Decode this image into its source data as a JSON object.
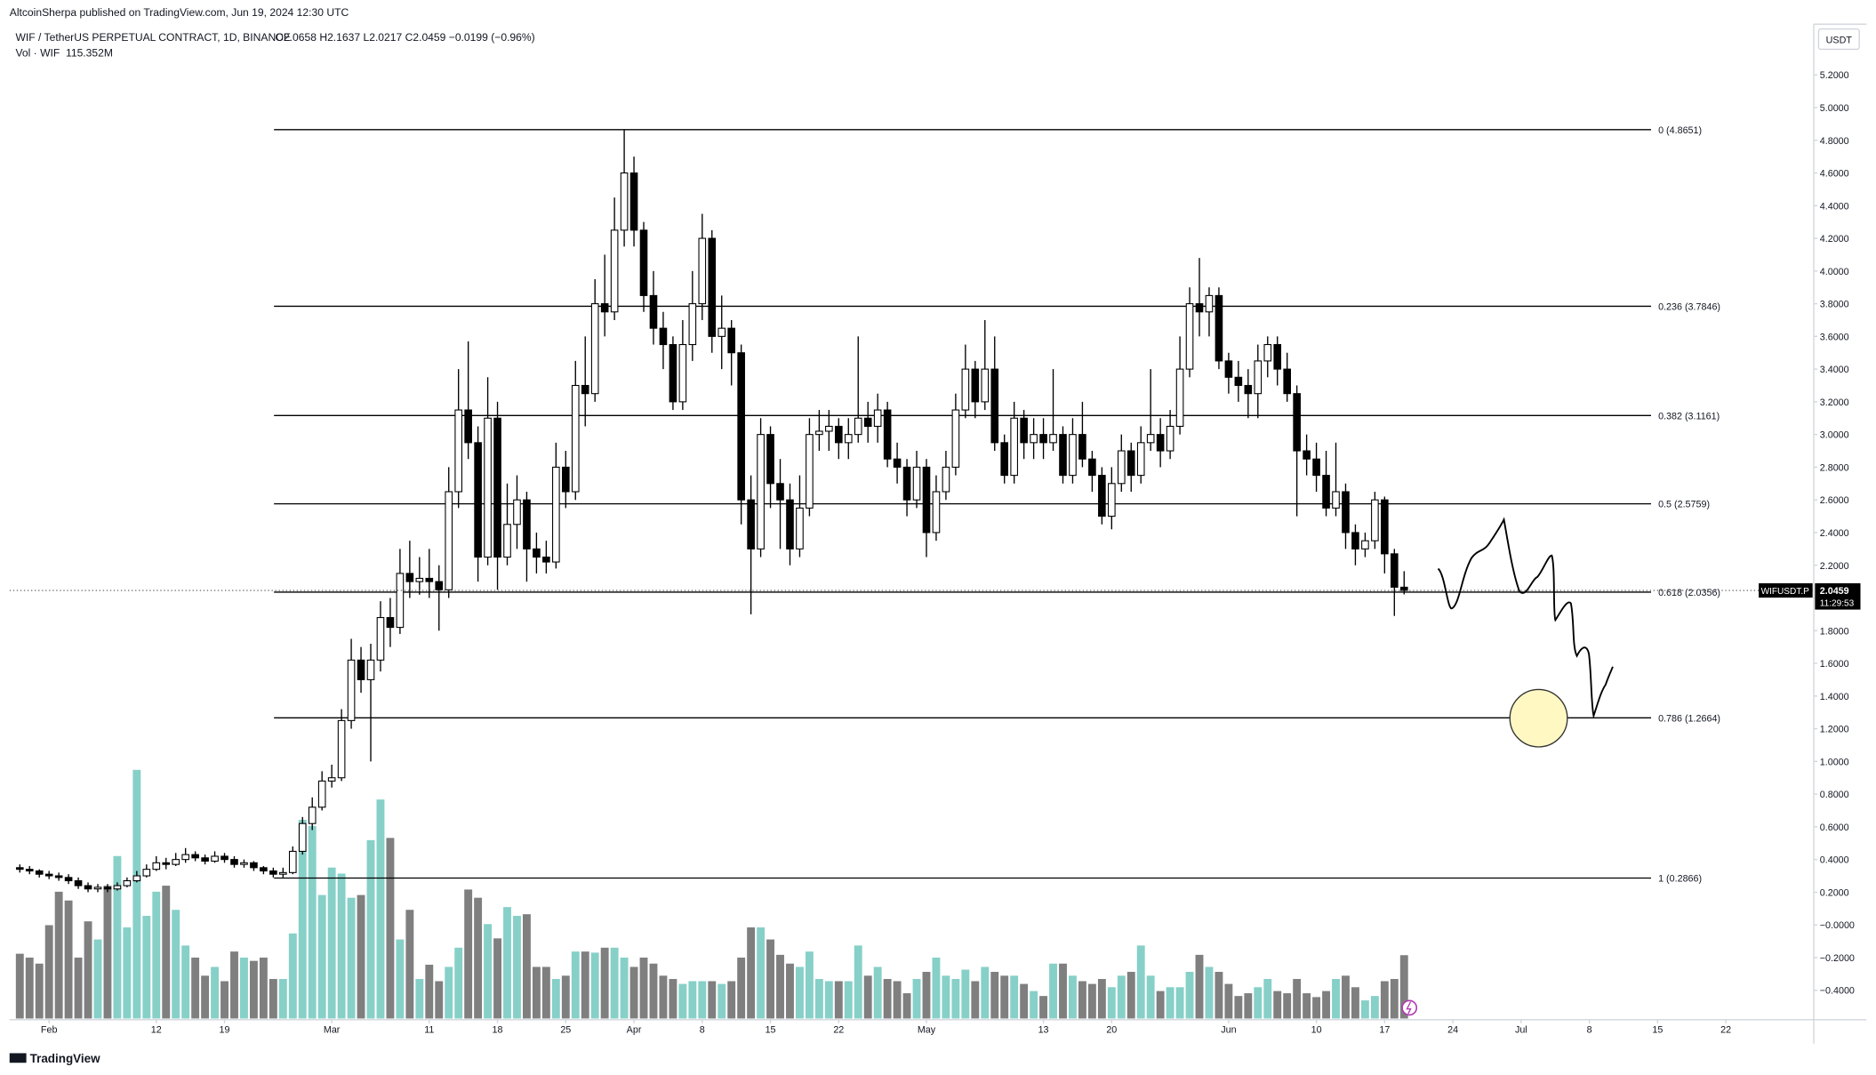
{
  "chart_data": {
    "type": "candlestick",
    "publisher": "AltcoinSherpa published on TradingView.com, Jun 19, 2024 12:30 UTC",
    "symbol": "WIF / TetherUS PERPETUAL CONTRACT, 1D, BINANCE",
    "ohlc_legend": "O2.0658 H2.1637 L2.0217 C2.0459 −0.0199 (−0.96%)",
    "volume_label": "Vol · WIF",
    "volume_value": "115.352M",
    "currency": "USDT",
    "ticker": "WIFUSDT.P",
    "countdown": "11:29:53",
    "brand": "TradingView",
    "colors": {
      "candle_up": "#ffffff",
      "candle_down": "#000000",
      "volume_up": "#86d0c8",
      "volume_down": "#7f7f7f"
    },
    "xlim": [
      -1.05,
      183.9
    ],
    "xticks": [
      {
        "value": 3,
        "label": "Feb"
      },
      {
        "value": 14,
        "label": "12"
      },
      {
        "value": 21,
        "label": "19"
      },
      {
        "value": 32,
        "label": "Mar"
      },
      {
        "value": 42,
        "label": "11"
      },
      {
        "value": 49,
        "label": "18"
      },
      {
        "value": 56,
        "label": "25"
      },
      {
        "value": 63,
        "label": "Apr"
      },
      {
        "value": 70,
        "label": "8"
      },
      {
        "value": 77,
        "label": "15"
      },
      {
        "value": 84,
        "label": "22"
      },
      {
        "value": 93,
        "label": "May"
      },
      {
        "value": 105,
        "label": "13"
      },
      {
        "value": 112,
        "label": "20"
      },
      {
        "value": 124,
        "label": "Jun"
      },
      {
        "value": 133,
        "label": "10"
      },
      {
        "value": 140,
        "label": "17"
      },
      {
        "value": 147,
        "label": "24"
      },
      {
        "value": 154,
        "label": "Jul"
      },
      {
        "value": 161,
        "label": "8"
      },
      {
        "value": 168,
        "label": "15"
      },
      {
        "value": 175,
        "label": "22"
      }
    ],
    "ylim": [
      -0.58,
      5.51
    ],
    "yticks": [
      {
        "value": 5.2,
        "label": "5.2000"
      },
      {
        "value": 5.0,
        "label": "5.0000"
      },
      {
        "value": 4.8,
        "label": "4.8000"
      },
      {
        "value": 4.6,
        "label": "4.6000"
      },
      {
        "value": 4.4,
        "label": "4.4000"
      },
      {
        "value": 4.2,
        "label": "4.2000"
      },
      {
        "value": 4.0,
        "label": "4.0000"
      },
      {
        "value": 3.8,
        "label": "3.8000"
      },
      {
        "value": 3.6,
        "label": "3.6000"
      },
      {
        "value": 3.4,
        "label": "3.4000"
      },
      {
        "value": 3.2,
        "label": "3.2000"
      },
      {
        "value": 3.0,
        "label": "3.0000"
      },
      {
        "value": 2.8,
        "label": "2.8000"
      },
      {
        "value": 2.6,
        "label": "2.6000"
      },
      {
        "value": 2.4,
        "label": "2.4000"
      },
      {
        "value": 2.2,
        "label": "2.2000"
      },
      {
        "value": 2.0,
        "label": "2.0000"
      },
      {
        "value": 1.8,
        "label": "1.8000"
      },
      {
        "value": 1.6,
        "label": "1.6000"
      },
      {
        "value": 1.4,
        "label": "1.4000"
      },
      {
        "value": 1.2,
        "label": "1.2000"
      },
      {
        "value": 1.0,
        "label": "1.0000"
      },
      {
        "value": 0.8,
        "label": "0.8000"
      },
      {
        "value": 0.6,
        "label": "0.6000"
      },
      {
        "value": 0.4,
        "label": "0.4000"
      },
      {
        "value": 0.2,
        "label": "0.2000"
      },
      {
        "value": 0,
        "label": "−0.0000"
      },
      {
        "value": -0.2,
        "label": "−0.2000"
      },
      {
        "value": -0.4,
        "label": "−0.4000"
      }
    ],
    "fib_levels": [
      {
        "label": "0 (4.8651)",
        "price": 4.8651
      },
      {
        "label": "0.236 (3.7846)",
        "price": 3.7846
      },
      {
        "label": "0.382 (3.1161)",
        "price": 3.1161
      },
      {
        "label": "0.5 (2.5759)",
        "price": 2.5759
      },
      {
        "label": "0.618 (2.0356)",
        "price": 2.0356
      },
      {
        "label": "0.786 (1.2664)",
        "price": 1.2664
      },
      {
        "label": "1 (0.2866)",
        "price": 0.2866
      }
    ],
    "open": [
      0.35,
      0.34,
      0.33,
      0.31,
      0.3,
      0.29,
      0.27,
      0.24,
      0.22,
      0.23,
      0.22,
      0.24,
      0.27,
      0.3,
      0.34,
      0.38,
      0.37,
      0.4,
      0.43,
      0.41,
      0.39,
      0.42,
      0.4,
      0.37,
      0.38,
      0.35,
      0.33,
      0.31,
      0.32,
      0.45,
      0.62,
      0.72,
      0.88,
      0.9,
      1.25,
      1.62,
      1.5,
      1.62,
      1.88,
      1.82,
      2.15,
      2.1,
      2.12,
      2.1,
      2.05,
      2.65,
      3.15,
      2.95,
      2.25,
      3.1,
      2.25,
      2.45,
      2.6,
      2.3,
      2.25,
      2.22,
      2.8,
      2.65,
      3.3,
      3.25,
      3.8,
      3.75,
      4.25,
      4.6,
      4.25,
      3.85,
      3.65,
      3.55,
      3.2,
      3.55,
      3.8,
      4.2,
      3.6,
      3.65,
      3.5,
      2.6,
      2.3,
      3.0,
      2.7,
      2.6,
      2.3,
      2.55,
      3.0,
      3.02,
      3.05,
      2.95,
      3.0,
      3.1,
      3.05,
      3.15,
      2.85,
      2.8,
      2.6,
      2.8,
      2.4,
      2.65,
      2.8,
      3.15,
      3.4,
      3.2,
      3.4,
      2.95,
      2.75,
      3.1,
      2.95,
      3.0,
      2.95,
      3.0,
      2.75,
      3.0,
      2.85,
      2.75,
      2.5,
      2.7,
      2.9,
      2.75,
      2.95,
      3.0,
      2.9,
      3.05,
      3.4,
      3.8,
      3.75,
      3.85,
      3.45,
      3.35,
      3.3,
      3.25,
      3.45,
      3.55,
      3.4,
      3.25,
      2.9,
      2.85,
      2.75,
      2.55,
      2.65,
      2.4,
      2.3,
      2.35,
      2.6,
      2.27,
      2.0658
    ],
    "high": [
      0.37,
      0.36,
      0.34,
      0.33,
      0.32,
      0.31,
      0.29,
      0.26,
      0.25,
      0.25,
      0.26,
      0.29,
      0.33,
      0.37,
      0.42,
      0.41,
      0.44,
      0.47,
      0.45,
      0.43,
      0.45,
      0.44,
      0.42,
      0.4,
      0.39,
      0.36,
      0.35,
      0.35,
      0.48,
      0.66,
      0.78,
      0.94,
      0.98,
      1.32,
      1.75,
      1.7,
      1.72,
      1.98,
      2.0,
      2.3,
      2.35,
      2.25,
      2.3,
      2.2,
      2.8,
      3.4,
      3.57,
      3.05,
      3.35,
      3.2,
      2.7,
      2.75,
      2.65,
      2.4,
      2.35,
      2.95,
      2.9,
      3.45,
      3.6,
      3.95,
      4.1,
      4.45,
      4.8651,
      4.7,
      4.3,
      4.0,
      3.75,
      3.6,
      3.7,
      4.0,
      4.35,
      4.25,
      3.85,
      3.7,
      3.55,
      2.75,
      3.1,
      3.05,
      2.85,
      2.7,
      2.75,
      3.1,
      3.15,
      3.15,
      3.1,
      3.1,
      3.6,
      3.2,
      3.25,
      3.2,
      2.95,
      2.85,
      2.9,
      2.85,
      2.75,
      2.9,
      3.25,
      3.55,
      3.45,
      3.7,
      3.6,
      3.0,
      3.2,
      3.15,
      3.1,
      3.1,
      3.4,
      3.05,
      3.1,
      3.2,
      2.9,
      2.8,
      2.8,
      3.0,
      2.95,
      3.05,
      3.4,
      3.1,
      3.15,
      3.6,
      3.9,
      4.08,
      3.9,
      3.9,
      3.5,
      3.45,
      3.4,
      3.55,
      3.6,
      3.6,
      3.5,
      3.3,
      3.0,
      2.95,
      2.9,
      2.95,
      2.7,
      2.45,
      2.4,
      2.65,
      2.62,
      2.3,
      2.1637
    ],
    "low": [
      0.32,
      0.31,
      0.29,
      0.28,
      0.27,
      0.25,
      0.22,
      0.2,
      0.2,
      0.2,
      0.21,
      0.23,
      0.26,
      0.29,
      0.33,
      0.34,
      0.36,
      0.38,
      0.39,
      0.37,
      0.38,
      0.38,
      0.35,
      0.35,
      0.33,
      0.31,
      0.29,
      0.29,
      0.31,
      0.43,
      0.58,
      0.7,
      0.84,
      0.88,
      1.2,
      1.42,
      1.0,
      1.55,
      1.7,
      1.78,
      2.0,
      2.02,
      2.0,
      1.8,
      2.0,
      2.55,
      2.85,
      2.1,
      2.2,
      2.05,
      2.2,
      2.3,
      2.1,
      2.15,
      2.15,
      2.18,
      2.55,
      2.6,
      3.05,
      3.2,
      3.6,
      3.7,
      4.15,
      4.15,
      3.75,
      3.55,
      3.4,
      3.15,
      3.15,
      3.45,
      3.7,
      3.5,
      3.4,
      3.3,
      2.45,
      1.9,
      2.25,
      2.55,
      2.3,
      2.2,
      2.25,
      2.5,
      2.9,
      2.9,
      2.85,
      2.85,
      2.95,
      2.95,
      2.95,
      2.8,
      2.7,
      2.5,
      2.55,
      2.25,
      2.35,
      2.6,
      2.75,
      3.1,
      3.1,
      3.15,
      2.9,
      2.7,
      2.7,
      2.85,
      2.85,
      2.85,
      2.9,
      2.7,
      2.7,
      2.8,
      2.65,
      2.45,
      2.42,
      2.65,
      2.65,
      2.7,
      2.9,
      2.8,
      2.85,
      3.0,
      3.35,
      3.6,
      3.6,
      3.4,
      3.25,
      3.2,
      3.1,
      3.1,
      3.35,
      3.3,
      3.2,
      2.5,
      2.75,
      2.65,
      2.5,
      2.5,
      2.3,
      2.2,
      2.25,
      2.3,
      2.15,
      1.89,
      2.0217
    ],
    "close": [
      0.34,
      0.33,
      0.31,
      0.3,
      0.29,
      0.27,
      0.24,
      0.22,
      0.23,
      0.22,
      0.24,
      0.27,
      0.3,
      0.34,
      0.38,
      0.37,
      0.4,
      0.43,
      0.41,
      0.39,
      0.42,
      0.4,
      0.37,
      0.38,
      0.35,
      0.33,
      0.31,
      0.32,
      0.45,
      0.62,
      0.72,
      0.88,
      0.9,
      1.25,
      1.62,
      1.5,
      1.62,
      1.88,
      1.82,
      2.15,
      2.1,
      2.12,
      2.1,
      2.05,
      2.65,
      3.15,
      2.95,
      2.25,
      3.1,
      2.25,
      2.45,
      2.6,
      2.3,
      2.25,
      2.22,
      2.8,
      2.65,
      3.3,
      3.25,
      3.8,
      3.75,
      4.25,
      4.6,
      4.25,
      3.85,
      3.65,
      3.55,
      3.2,
      3.55,
      3.8,
      4.2,
      3.6,
      3.65,
      3.5,
      2.6,
      2.3,
      3.0,
      2.7,
      2.6,
      2.3,
      2.55,
      3.0,
      3.02,
      3.05,
      2.95,
      3.0,
      3.1,
      3.05,
      3.15,
      2.85,
      2.8,
      2.6,
      2.8,
      2.4,
      2.65,
      2.8,
      3.15,
      3.4,
      3.2,
      3.4,
      2.95,
      2.75,
      3.1,
      2.95,
      3.0,
      2.95,
      3.0,
      2.75,
      3.0,
      2.85,
      2.75,
      2.5,
      2.7,
      2.9,
      2.75,
      2.95,
      3.0,
      2.9,
      3.05,
      3.4,
      3.8,
      3.75,
      3.85,
      3.45,
      3.35,
      3.3,
      3.25,
      3.45,
      3.55,
      3.4,
      3.25,
      2.9,
      2.85,
      2.75,
      2.55,
      2.65,
      2.4,
      2.3,
      2.35,
      2.6,
      2.27,
      2.0658,
      2.0459
    ],
    "volume": [
      118,
      111,
      100,
      170,
      231,
      215,
      111,
      177,
      144,
      242,
      296,
      166,
      453,
      187,
      231,
      242,
      198,
      133,
      111,
      78,
      94,
      68,
      122,
      111,
      105,
      111,
      72,
      72,
      155,
      362,
      351,
      225,
      275,
      264,
      220,
      225,
      325,
      399,
      329,
      144,
      198,
      72,
      98,
      68,
      94,
      129,
      235,
      220,
      172,
      146,
      203,
      187,
      190,
      94,
      94,
      72,
      78,
      122,
      122,
      120,
      129,
      129,
      111,
      94,
      111,
      100,
      78,
      72,
      63,
      68,
      68,
      68,
      63,
      68,
      111,
      166,
      166,
      144,
      116,
      100,
      94,
      122,
      72,
      68,
      68,
      68,
      133,
      78,
      94,
      72,
      68,
      46,
      72,
      85,
      111,
      78,
      72,
      89,
      68,
      94,
      85,
      78,
      78,
      63,
      50,
      41,
      100,
      100,
      78,
      68,
      63,
      72,
      57,
      78,
      85,
      133,
      78,
      50,
      57,
      57,
      85,
      116,
      94,
      85,
      63,
      41,
      46,
      57,
      72,
      50,
      46,
      72,
      46,
      39,
      50,
      72,
      78,
      57,
      33,
      41,
      68,
      72,
      115.352
    ]
  }
}
